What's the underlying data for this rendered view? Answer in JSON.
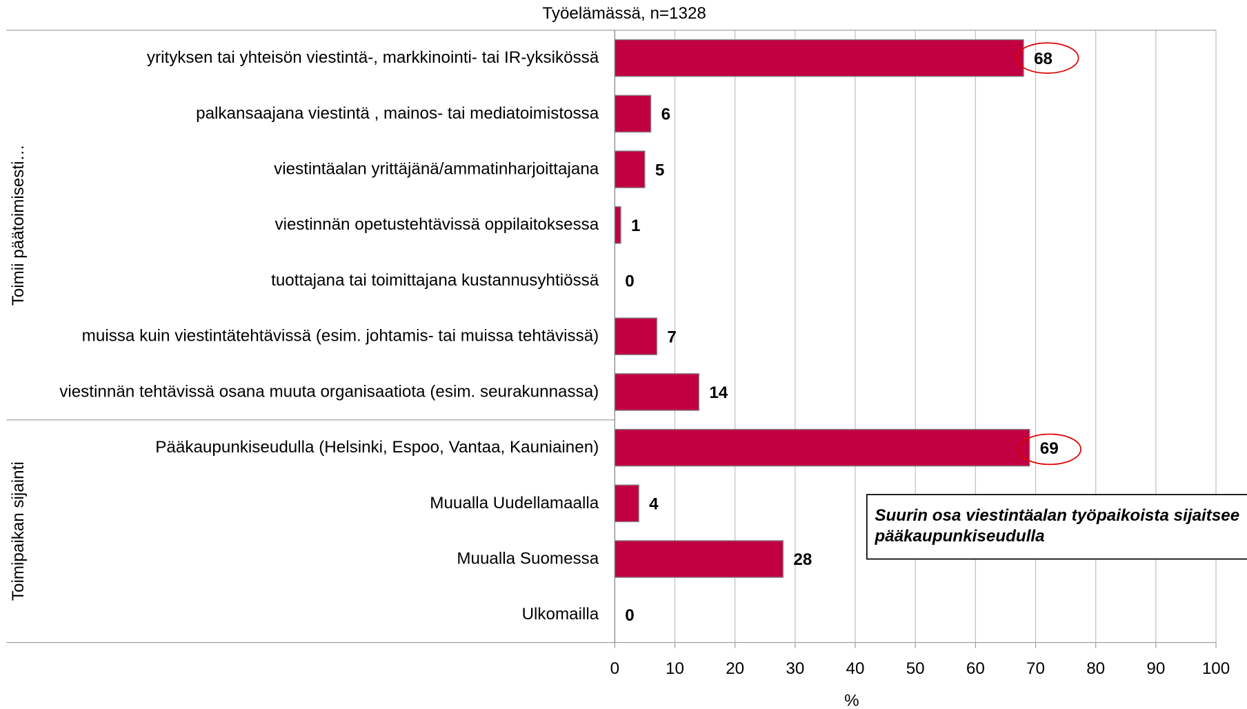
{
  "chart_data": {
    "type": "bar",
    "orientation": "horizontal",
    "title": "Työelämässä, n=1328",
    "x_label": "%",
    "group_labels": [
      "Toimii päätoimisesti…",
      "Toimipaikan sijainti"
    ],
    "categories": [
      "yrityksen tai yhteisön viestintä-, markkinointi- tai IR-yksikössä",
      "palkansaajana viestintä , mainos- tai mediatoimistossa",
      "viestintäalan yrittäjänä/ammatinharjoittajana",
      "viestinnän opetustehtävissä oppilaitoksessa",
      "tuottajana tai toimittajana kustannusyhtiössä",
      "muissa kuin viestintätehtävissä (esim. johtamis- tai muissa tehtävissä)",
      "viestinnän tehtävissä osana muuta organisaatiota (esim. seurakunnassa)",
      "Pääkaupunkiseudulla (Helsinki, Espoo, Vantaa, Kauniainen)",
      "Muualla Uudellamaalla",
      "Muualla Suomessa",
      "Ulkomailla"
    ],
    "values": [
      68,
      6,
      5,
      1,
      0,
      7,
      14,
      69,
      4,
      28,
      0
    ],
    "color": "#c00040",
    "xlim": [
      0,
      100
    ],
    "xticks": [
      0,
      10,
      20,
      30,
      40,
      50,
      60,
      70,
      80,
      90,
      100
    ],
    "grid": true,
    "annotation": "Suurin osa viestintäalan työpaikoista sijaitsee pääkaupunkiseudulla"
  }
}
